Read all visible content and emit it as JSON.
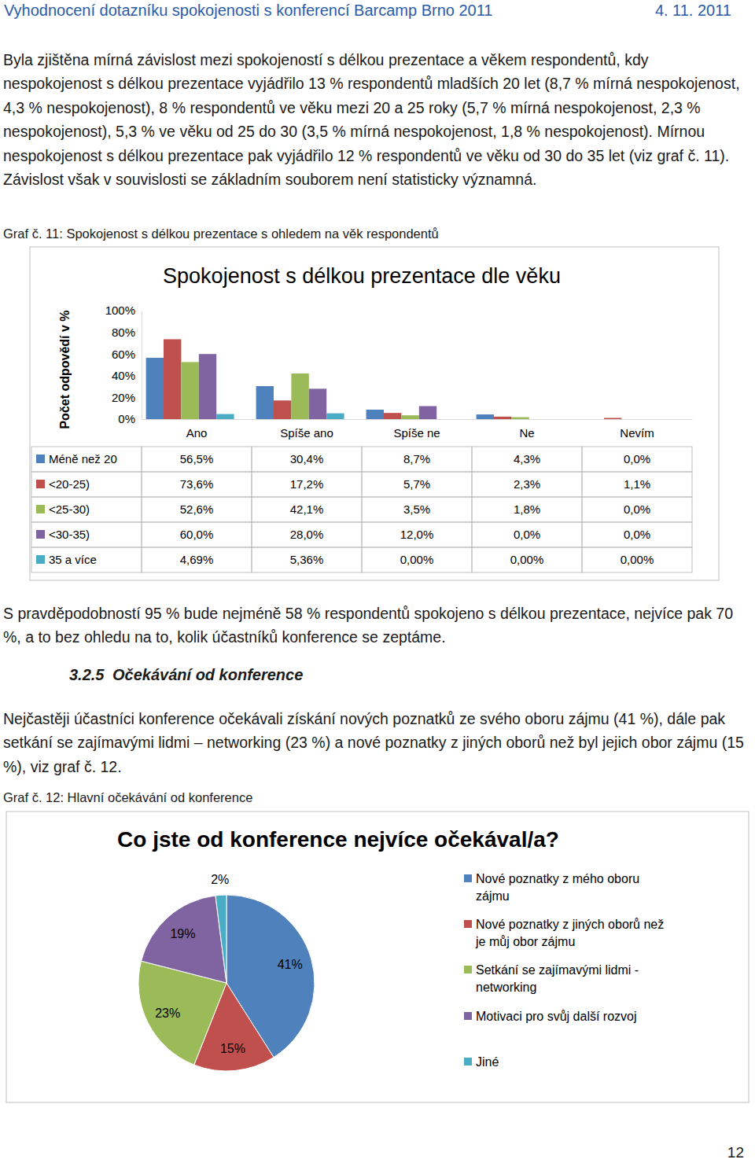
{
  "header": {
    "title": "Vyhodnocení dotazníku spokojenosti s konferencí Barcamp Brno 2011",
    "date": "4. 11. 2011"
  },
  "body": {
    "paragraph_1": "Byla zjištěna mírná závislost mezi spokojeností s délkou prezentace a věkem respondentů, kdy nespokojenost s délkou prezentace vyjádřilo 13 % respondentů mladších 20 let (8,7 % mírná nespokojenost, 4,3 % nespokojenost), 8 % respondentů ve věku mezi 20 a 25 roky (5,7 % mírná nespokojenost, 2,3 % nespokojenost), 5,3 % ve věku od 25 do 30 (3,5 % mírná nespokojenost, 1,8 % nespokojenost). Mírnou nespokojenost s délkou prezentace pak vyjádřilo 12 % respondentů ve věku od 30 do 35 let (viz graf č. 11). Závislost však v souvislosti se základním souborem není statisticky významná.",
    "caption_11": "Graf č. 11: Spokojenost s délkou prezentace s ohledem na věk respondentů",
    "paragraph_2": "S pravděpodobností 95 % bude nejméně 58 % respondentů spokojeno s délkou prezentace, nejvíce pak 70 %, a to bez ohledu na to, kolik účastníků konference se zeptáme.",
    "heading": {
      "number": "3.2.5",
      "text": "Očekávání od konference"
    },
    "paragraph_3": "Nejčastěji účastníci konference očekávali získání nových poznatků ze svého oboru zájmu (41 %), dále pak setkání se zajímavými lidmi – networking (23 %) a nové poznatky z jiných oborů než byl jejich obor zájmu (15 %), viz graf č. 12.",
    "caption_12": "Graf č. 12: Hlavní očekávání od konference"
  },
  "chart_data": [
    {
      "type": "bar",
      "title": "Spokojenost s délkou prezentace dle věku",
      "y_label": "Počet odpovědí v %",
      "categories": [
        "Ano",
        "Spíše ano",
        "Spíše ne",
        "Ne",
        "Nevím"
      ],
      "series": [
        {
          "name": "Méně než 20",
          "color": "#4f81bd",
          "values": [
            56.5,
            30.4,
            8.7,
            4.3,
            0.0
          ],
          "value_labels": [
            "56,5%",
            "30,4%",
            "8,7%",
            "4,3%",
            "0,0%"
          ]
        },
        {
          "name": "<20-25)",
          "color": "#c0504d",
          "values": [
            73.6,
            17.2,
            5.7,
            2.3,
            1.1
          ],
          "value_labels": [
            "73,6%",
            "17,2%",
            "5,7%",
            "2,3%",
            "1,1%"
          ]
        },
        {
          "name": "<25-30)",
          "color": "#9bbb59",
          "values": [
            52.6,
            42.1,
            3.5,
            1.8,
            0.0
          ],
          "value_labels": [
            "52,6%",
            "42,1%",
            "3,5%",
            "1,8%",
            "0,0%"
          ]
        },
        {
          "name": "<30-35)",
          "color": "#8064a2",
          "values": [
            60.0,
            28.0,
            12.0,
            0.0,
            0.0
          ],
          "value_labels": [
            "60,0%",
            "28,0%",
            "12,0%",
            "0,0%",
            "0,0%"
          ]
        },
        {
          "name": "35 a více",
          "color": "#4bacc6",
          "values": [
            4.69,
            5.36,
            0.0,
            0.0,
            0.0
          ],
          "value_labels": [
            "4,69%",
            "5,36%",
            "0,00%",
            "0,00%",
            "0,00%"
          ]
        }
      ],
      "ylim": [
        0,
        100
      ],
      "yticks": [
        {
          "value": 0,
          "label": "0%"
        },
        {
          "value": 20,
          "label": "20%"
        },
        {
          "value": 40,
          "label": "40%"
        },
        {
          "value": 60,
          "label": "60%"
        },
        {
          "value": 80,
          "label": "80%"
        },
        {
          "value": 100,
          "label": "100%"
        }
      ],
      "grid": false
    },
    {
      "type": "pie",
      "title": "Co jste od konference nejvíce očekával/a?",
      "categories": [
        "Nové poznatky z mého oboru zájmu",
        "Nové poznatky z jiných oborů než je můj obor zájmu",
        "Setkání se zajímavými lidmi - networking",
        "Motivaci pro svůj další rozvoj",
        "Jiné"
      ],
      "values": [
        41,
        15,
        23,
        19,
        2
      ],
      "value_labels": [
        "41%",
        "15%",
        "23%",
        "19%",
        "2%"
      ],
      "colors": [
        "#4f81bd",
        "#c0504d",
        "#9bbb59",
        "#8064a2",
        "#4bacc6"
      ],
      "data_labels": true,
      "legend": "right"
    }
  ],
  "footer": {
    "page": "12"
  }
}
